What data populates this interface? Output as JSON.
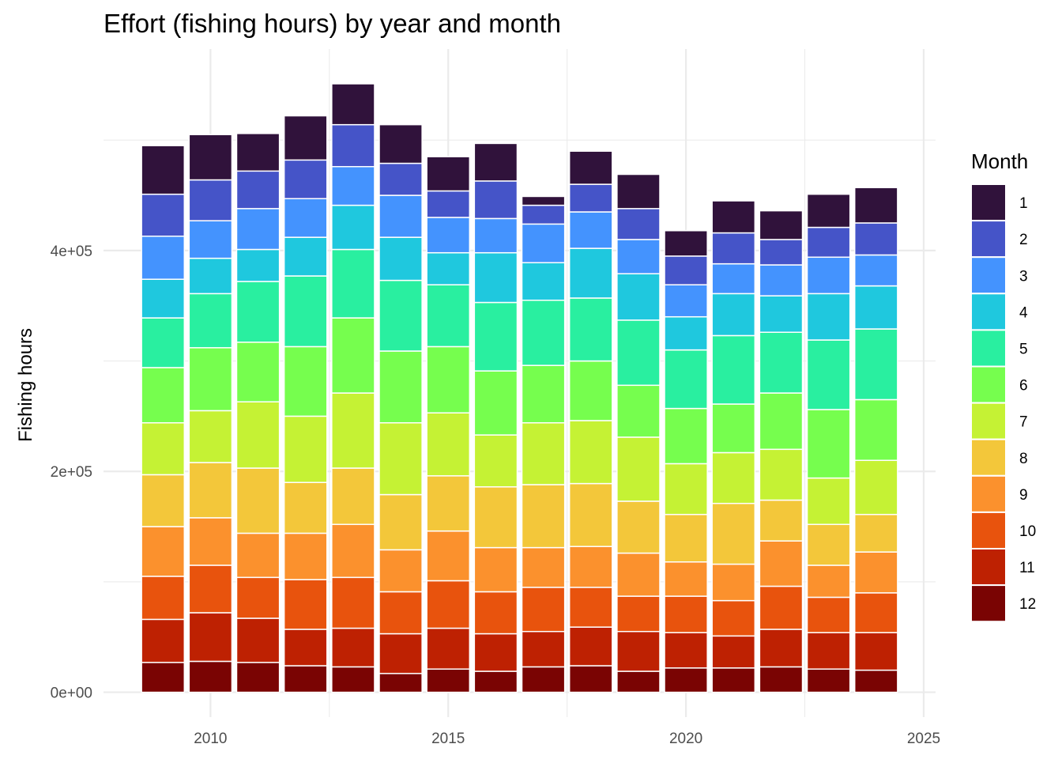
{
  "chart_data": {
    "type": "bar",
    "stacked": true,
    "title": "Effort (fishing hours) by year and month",
    "xlabel": "",
    "ylabel": "Fishing hours",
    "x": [
      2009,
      2010,
      2011,
      2012,
      2013,
      2014,
      2015,
      2016,
      2017,
      2018,
      2019,
      2020,
      2021,
      2022,
      2023,
      2024
    ],
    "xlim": [
      2007.75,
      2025.25
    ],
    "x_ticks": [
      2010,
      2015,
      2020,
      2025
    ],
    "x_tick_labels": [
      "2010",
      "2015",
      "2020",
      "2025"
    ],
    "ylim": [
      -22500,
      582500
    ],
    "y_ticks": [
      0,
      200000,
      400000
    ],
    "y_tick_labels": [
      "0e+00",
      "2e+05",
      "4e+05"
    ],
    "grid": true,
    "legend": {
      "title": "Month",
      "position": "right"
    },
    "series": [
      {
        "name": "12",
        "color": "#7a0403",
        "values": [
          27000,
          28000,
          27000,
          24000,
          23000,
          17000,
          21000,
          19000,
          23000,
          24000,
          19000,
          22000,
          22000,
          23000,
          21000,
          20000
        ]
      },
      {
        "name": "11",
        "color": "#be2102",
        "values": [
          39000,
          44000,
          40000,
          33000,
          35000,
          36000,
          37000,
          34000,
          32000,
          35000,
          36000,
          32000,
          29000,
          34000,
          33000,
          34000
        ]
      },
      {
        "name": "10",
        "color": "#e8530d",
        "values": [
          39000,
          43000,
          37000,
          45000,
          46000,
          38000,
          43000,
          38000,
          40000,
          36000,
          32000,
          33000,
          32000,
          39000,
          32000,
          36000
        ]
      },
      {
        "name": "9",
        "color": "#fb912d",
        "values": [
          45000,
          43000,
          40000,
          42000,
          48000,
          38000,
          45000,
          40000,
          36000,
          37000,
          39000,
          31000,
          33000,
          41000,
          29000,
          37000
        ]
      },
      {
        "name": "8",
        "color": "#f3c73a",
        "values": [
          47000,
          50000,
          59000,
          46000,
          51000,
          50000,
          50000,
          55000,
          57000,
          57000,
          47000,
          43000,
          55000,
          37000,
          37000,
          34000
        ]
      },
      {
        "name": "7",
        "color": "#c5f234",
        "values": [
          47000,
          47000,
          60000,
          60000,
          68000,
          65000,
          57000,
          47000,
          56000,
          57000,
          58000,
          46000,
          46000,
          46000,
          42000,
          49000
        ]
      },
      {
        "name": "6",
        "color": "#76fe4e",
        "values": [
          50000,
          57000,
          54000,
          63000,
          68000,
          65000,
          60000,
          58000,
          52000,
          54000,
          47000,
          50000,
          44000,
          51000,
          62000,
          55000
        ]
      },
      {
        "name": "5",
        "color": "#29efa0",
        "values": [
          45000,
          49000,
          55000,
          64000,
          62000,
          64000,
          56000,
          62000,
          59000,
          57000,
          59000,
          53000,
          62000,
          55000,
          63000,
          64000
        ]
      },
      {
        "name": "4",
        "color": "#1fc8de",
        "values": [
          35000,
          32000,
          29000,
          35000,
          40000,
          39000,
          29000,
          45000,
          34000,
          45000,
          42000,
          30000,
          38000,
          33000,
          42000,
          39000
        ]
      },
      {
        "name": "3",
        "color": "#4493fe",
        "values": [
          39000,
          34000,
          37000,
          35000,
          35000,
          38000,
          32000,
          31000,
          35000,
          33000,
          31000,
          29000,
          27000,
          28000,
          33000,
          28000
        ]
      },
      {
        "name": "2",
        "color": "#4554c8",
        "values": [
          38000,
          37000,
          34000,
          35000,
          38000,
          29000,
          24000,
          34000,
          17000,
          25000,
          28000,
          26000,
          28000,
          23000,
          27000,
          29000
        ]
      },
      {
        "name": "1",
        "color": "#30123b",
        "values": [
          44000,
          41000,
          34000,
          40000,
          37000,
          35000,
          31000,
          34000,
          8000,
          30000,
          31000,
          23000,
          29000,
          26000,
          30000,
          32000
        ]
      }
    ]
  }
}
